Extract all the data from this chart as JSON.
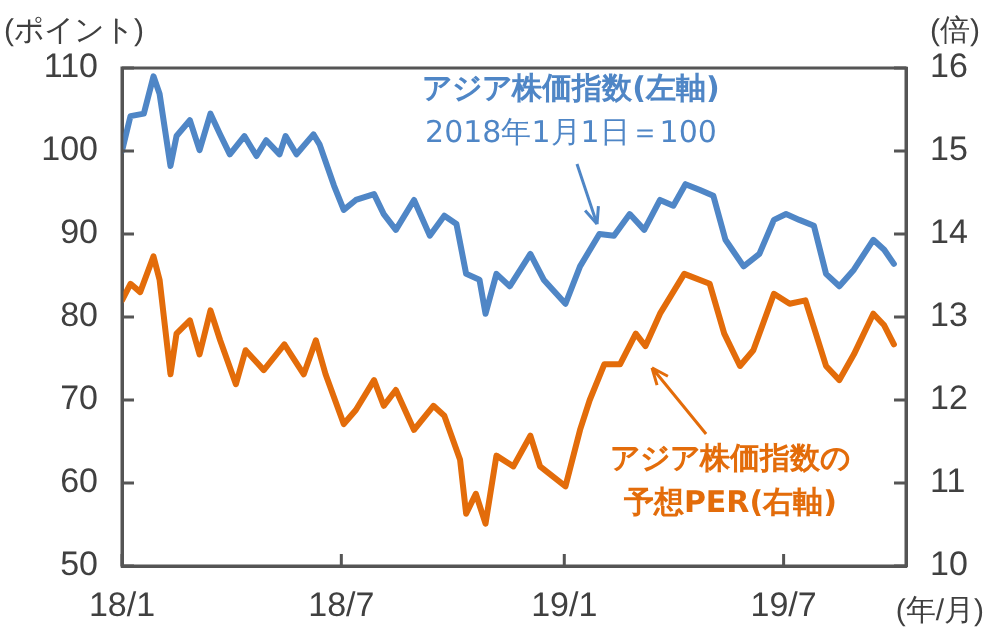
{
  "chart_data": {
    "type": "line",
    "xlabel": "(年/月)",
    "ylabel": "(ポイント)",
    "y2label": "(倍)",
    "xlim": [
      "2018-01-01",
      "2019-10-10"
    ],
    "xticks": [
      {
        "value": "2018-01-01",
        "label": "18/1"
      },
      {
        "value": "2018-07-01",
        "label": "18/7"
      },
      {
        "value": "2019-01-01",
        "label": "19/1"
      },
      {
        "value": "2019-07-01",
        "label": "19/7"
      }
    ],
    "ylim": [
      50,
      110
    ],
    "yticks": [
      50,
      60,
      70,
      80,
      90,
      100,
      110
    ],
    "y2lim": [
      10,
      16
    ],
    "y2ticks": [
      10,
      11,
      12,
      13,
      14,
      15,
      16
    ],
    "grid": false,
    "legend": false,
    "marker": "none",
    "line_style": "solid",
    "series": [
      {
        "color": "#4f86c6",
        "x": [
          "2018-01-01",
          "2018-01-08",
          "2018-01-19",
          "2018-01-27",
          "2018-02-01",
          "2018-02-10",
          "2018-02-15",
          "2018-02-26",
          "2018-03-06",
          "2018-03-15",
          "2018-03-23",
          "2018-03-31",
          "2018-04-12",
          "2018-04-22",
          "2018-04-30",
          "2018-05-11",
          "2018-05-16",
          "2018-05-25",
          "2018-06-08",
          "2018-06-13",
          "2018-06-25",
          "2018-07-03",
          "2018-07-13",
          "2018-07-28",
          "2018-08-05",
          "2018-08-15",
          "2018-08-30",
          "2018-09-12",
          "2018-09-24",
          "2018-10-04",
          "2018-10-12",
          "2018-10-23",
          "2018-10-28",
          "2018-11-06",
          "2018-11-17",
          "2018-12-04",
          "2018-12-15",
          "2019-01-02",
          "2019-01-14",
          "2019-01-30",
          "2019-02-11",
          "2019-02-24",
          "2019-03-08",
          "2019-03-21",
          "2019-04-01",
          "2019-04-11",
          "2019-04-23",
          "2019-05-04",
          "2019-05-14",
          "2019-05-29",
          "2019-06-11",
          "2019-06-23",
          "2019-07-03",
          "2019-07-14",
          "2019-07-26",
          "2019-08-05",
          "2019-08-16",
          "2019-08-28",
          "2019-09-13",
          "2019-09-22",
          "2019-09-30"
        ],
        "values": [
          100,
          104.2,
          104.5,
          109,
          106.9,
          98.2,
          101.8,
          103.7,
          100.1,
          104.5,
          102,
          99.6,
          101.8,
          99.4,
          101.3,
          99.6,
          101.8,
          99.6,
          102,
          100.8,
          95.8,
          92.9,
          94.1,
          94.8,
          92.4,
          90.5,
          94.1,
          89.8,
          92.2,
          91.2,
          85.2,
          84.5,
          80.4,
          85.2,
          83.7,
          87.6,
          84.5,
          81.6,
          86.1,
          90,
          89.8,
          92.4,
          90.5,
          94.1,
          93.4,
          96,
          95.3,
          94.6,
          89.3,
          86.1,
          87.6,
          91.7,
          92.4,
          91.7,
          91,
          85.2,
          83.7,
          85.7,
          89.3,
          88.1,
          86.4
        ]
      },
      {
        "color": "#e36c0a",
        "axis": "y2",
        "x": [
          "2018-01-01",
          "2018-01-08",
          "2018-01-16",
          "2018-01-27",
          "2018-02-01",
          "2018-02-10",
          "2018-02-15",
          "2018-02-26",
          "2018-03-06",
          "2018-03-15",
          "2018-03-23",
          "2018-04-05",
          "2018-04-13",
          "2018-04-28",
          "2018-05-15",
          "2018-05-31",
          "2018-06-10",
          "2018-06-18",
          "2018-07-03",
          "2018-07-13",
          "2018-07-28",
          "2018-08-05",
          "2018-08-15",
          "2018-08-30",
          "2018-09-15",
          "2018-09-24",
          "2018-10-07",
          "2018-10-12",
          "2018-10-20",
          "2018-10-28",
          "2018-11-06",
          "2018-11-20",
          "2018-12-04",
          "2018-12-12",
          "2019-01-02",
          "2019-01-14",
          "2019-01-22",
          "2019-02-03",
          "2019-02-16",
          "2019-03-01",
          "2019-03-09",
          "2019-03-21",
          "2019-04-10",
          "2019-05-01",
          "2019-05-13",
          "2019-05-26",
          "2019-06-06",
          "2019-06-23",
          "2019-07-06",
          "2019-07-19",
          "2019-08-05",
          "2019-08-16",
          "2019-08-28",
          "2019-09-13",
          "2019-09-22",
          "2019-09-30"
        ],
        "values": [
          13.2,
          13.4,
          13.3,
          13.73,
          13.45,
          12.31,
          12.8,
          12.96,
          12.55,
          13.08,
          12.72,
          12.19,
          12.6,
          12.36,
          12.67,
          12.31,
          12.72,
          12.31,
          11.71,
          11.88,
          12.24,
          11.93,
          12.12,
          11.64,
          11.93,
          11.81,
          11.28,
          10.63,
          10.87,
          10.51,
          11.33,
          11.2,
          11.57,
          11.2,
          10.96,
          11.64,
          12,
          12.43,
          12.43,
          12.8,
          12.65,
          13.04,
          13.52,
          13.4,
          12.8,
          12.41,
          12.6,
          13.28,
          13.16,
          13.2,
          12.41,
          12.24,
          12.55,
          13.04,
          12.9,
          12.67
        ]
      }
    ],
    "annotations": [
      {
        "text": "アジア株価指数(左軸)\n2018年1月1日＝100",
        "x": "2019-01-28",
        "y": 91.2
      },
      "アジア株価指数の",
      "予想PER(右軸)"
    ]
  }
}
